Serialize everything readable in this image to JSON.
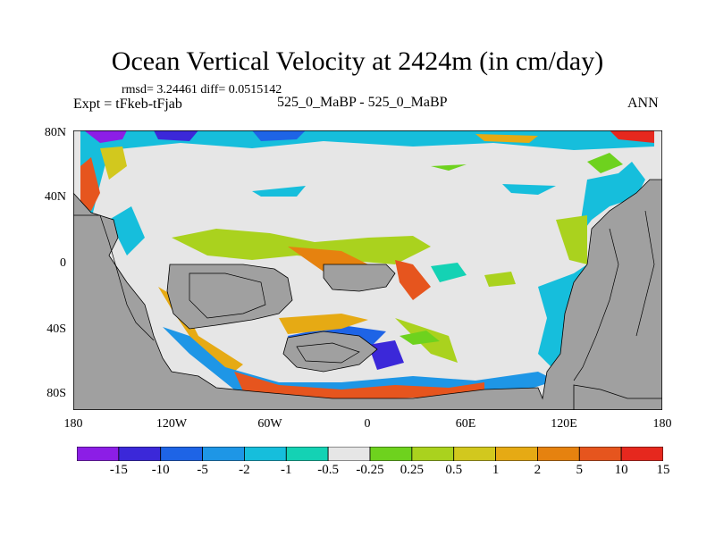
{
  "figure": {
    "title": "Ocean Vertical Velocity at 2424m (in cm/day)",
    "stats": "rmsd= 3.24461 diff= 0.0515142",
    "expt": "Expt = tFkeb-tFjab",
    "cases": "525_0_MaBP - 525_0_MaBP",
    "season": "ANN"
  },
  "map": {
    "type": "filled-contour-map",
    "land_color": "#a0a0a0",
    "near_zero_color": "#e6e6e6",
    "lat_ticks": [
      "80N",
      "40N",
      "0",
      "40S",
      "80S"
    ],
    "lon_ticks": [
      "180",
      "120W",
      "60W",
      "0",
      "60E",
      "120E",
      "180"
    ]
  },
  "colorbar": {
    "colors": [
      "#8c1ee6",
      "#3b28d9",
      "#1e64e6",
      "#1e96e6",
      "#16bedc",
      "#14d2b4",
      "#e6e6e6",
      "#6ed21e",
      "#aad21e",
      "#d2c81e",
      "#e6aa14",
      "#e6820f",
      "#e6551e",
      "#e6281e"
    ],
    "labels": [
      "-15",
      "-10",
      "-5",
      "-2",
      "-1",
      "-0.5",
      "-0.25",
      "0.25",
      "0.5",
      "1",
      "2",
      "5",
      "10",
      "15"
    ]
  }
}
